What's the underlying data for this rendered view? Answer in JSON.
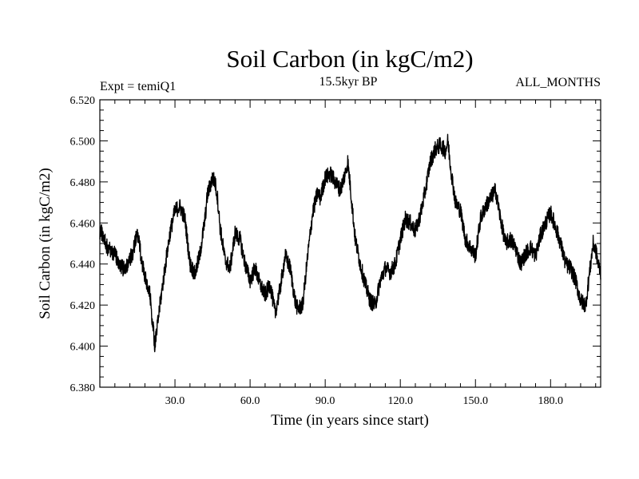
{
  "chart_data": {
    "type": "line",
    "title": "Soil Carbon (in kgC/m2)",
    "subtitle_left": "Expt = temiQ1",
    "subtitle_center": "15.5kyr BP",
    "subtitle_right": "ALL_MONTHS",
    "xlabel": "Time (in years since start)",
    "ylabel": "Soil Carbon (in kgC/m2)",
    "xlim": [
      0,
      200
    ],
    "ylim": [
      6.38,
      6.52
    ],
    "xticks": [
      30,
      60,
      90,
      120,
      150,
      180
    ],
    "xtick_labels": [
      "30.0",
      "60.0",
      "90.0",
      "120.0",
      "150.0",
      "180.0"
    ],
    "yticks": [
      6.38,
      6.4,
      6.42,
      6.44,
      6.46,
      6.48,
      6.5,
      6.52
    ],
    "ytick_labels": [
      "6.380",
      "6.400",
      "6.420",
      "6.440",
      "6.460",
      "6.480",
      "6.500",
      "6.520"
    ],
    "noise_amplitude": 0.004,
    "series": [
      {
        "name": "Soil Carbon",
        "x": [
          0,
          1,
          3,
          6,
          8,
          10,
          13,
          15,
          17,
          19,
          20,
          21,
          22,
          24,
          26,
          28,
          30,
          32,
          34,
          36,
          38,
          40,
          42,
          43,
          45,
          46,
          47,
          48,
          50,
          52,
          54,
          56,
          58,
          60,
          62,
          64,
          66,
          68,
          70,
          72,
          74,
          76,
          78,
          79,
          81,
          83,
          85,
          87,
          88,
          90,
          92,
          94,
          96,
          98,
          99,
          100,
          102,
          104,
          106,
          108,
          110,
          112,
          114,
          116,
          118,
          120,
          122,
          124,
          126,
          128,
          130,
          132,
          134,
          136,
          138,
          139,
          140,
          142,
          144,
          146,
          148,
          150,
          152,
          154,
          156,
          158,
          160,
          162,
          164,
          166,
          168,
          170,
          172,
          174,
          176,
          178,
          180,
          182,
          184,
          186,
          188,
          190,
          192,
          194,
          196,
          197,
          198,
          199,
          200
        ],
        "values": [
          6.456,
          6.455,
          6.448,
          6.445,
          6.44,
          6.437,
          6.445,
          6.455,
          6.44,
          6.428,
          6.425,
          6.412,
          6.4,
          6.42,
          6.438,
          6.455,
          6.466,
          6.468,
          6.462,
          6.44,
          6.435,
          6.445,
          6.462,
          6.474,
          6.482,
          6.48,
          6.472,
          6.458,
          6.442,
          6.438,
          6.455,
          6.452,
          6.44,
          6.432,
          6.438,
          6.43,
          6.425,
          6.43,
          6.416,
          6.428,
          6.444,
          6.438,
          6.422,
          6.418,
          6.42,
          6.444,
          6.465,
          6.475,
          6.472,
          6.482,
          6.484,
          6.48,
          6.476,
          6.484,
          6.49,
          6.478,
          6.452,
          6.44,
          6.43,
          6.422,
          6.42,
          6.432,
          6.438,
          6.436,
          6.44,
          6.452,
          6.462,
          6.46,
          6.456,
          6.464,
          6.476,
          6.49,
          6.496,
          6.498,
          6.495,
          6.5,
          6.488,
          6.47,
          6.466,
          6.452,
          6.448,
          6.444,
          6.462,
          6.468,
          6.472,
          6.476,
          6.462,
          6.45,
          6.452,
          6.448,
          6.44,
          6.445,
          6.448,
          6.444,
          6.454,
          6.46,
          6.465,
          6.458,
          6.45,
          6.44,
          6.438,
          6.432,
          6.422,
          6.42,
          6.44,
          6.45,
          6.447,
          6.44,
          6.436
        ]
      }
    ]
  }
}
